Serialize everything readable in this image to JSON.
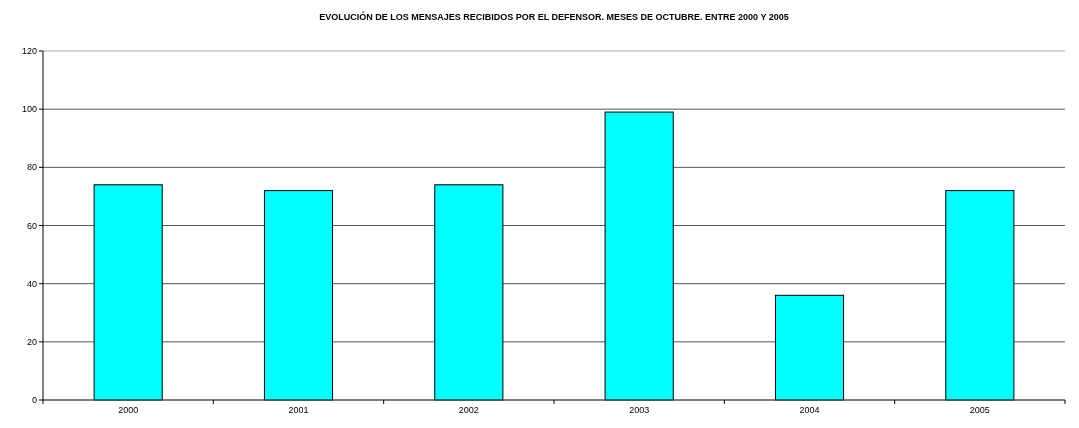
{
  "chart_data": {
    "type": "bar",
    "title": "EVOLUCIÓN DE LOS MENSAJES RECIBIDOS POR EL DEFENSOR. MESES DE OCTUBRE. ENTRE 2000 Y 2005",
    "categories": [
      "2000",
      "2001",
      "2002",
      "2003",
      "2004",
      "2005"
    ],
    "values": [
      74,
      72,
      74,
      99,
      36,
      72
    ],
    "color": "#00ffff",
    "ylim": [
      0,
      120
    ],
    "yticks": [
      0,
      20,
      40,
      60,
      80,
      100,
      120
    ],
    "grid": "y"
  }
}
